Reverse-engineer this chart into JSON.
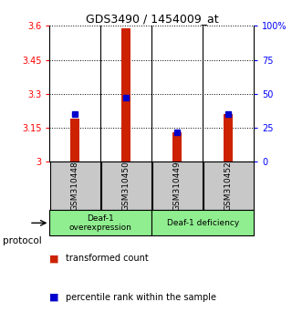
{
  "title": "GDS3490 / 1454009_at",
  "samples": [
    "GSM310448",
    "GSM310450",
    "GSM310449",
    "GSM310452"
  ],
  "red_values": [
    3.19,
    3.59,
    3.13,
    3.21
  ],
  "blue_percentiles": [
    35,
    47,
    22,
    35
  ],
  "ylim_left": [
    3.0,
    3.6
  ],
  "ylim_right": [
    0,
    100
  ],
  "yticks_left": [
    3.0,
    3.15,
    3.3,
    3.45,
    3.6
  ],
  "ytick_labels_left": [
    "3",
    "3.15",
    "3.3",
    "3.45",
    "3.6"
  ],
  "yticks_right": [
    0,
    25,
    50,
    75,
    100
  ],
  "ytick_labels_right": [
    "0",
    "25",
    "50",
    "75",
    "100%"
  ],
  "groups": [
    {
      "label": "Deaf-1\noverexpression",
      "start": 0,
      "end": 2,
      "color": "#90EE90"
    },
    {
      "label": "Deaf-1 deficiency",
      "start": 2,
      "end": 4,
      "color": "#90EE90"
    }
  ],
  "bar_color_red": "#CC2200",
  "bar_color_blue": "#0000CC",
  "sample_box_color": "#C8C8C8",
  "protocol_label": "protocol",
  "legend_red": "transformed count",
  "legend_blue": "percentile rank within the sample",
  "bar_width": 0.18
}
